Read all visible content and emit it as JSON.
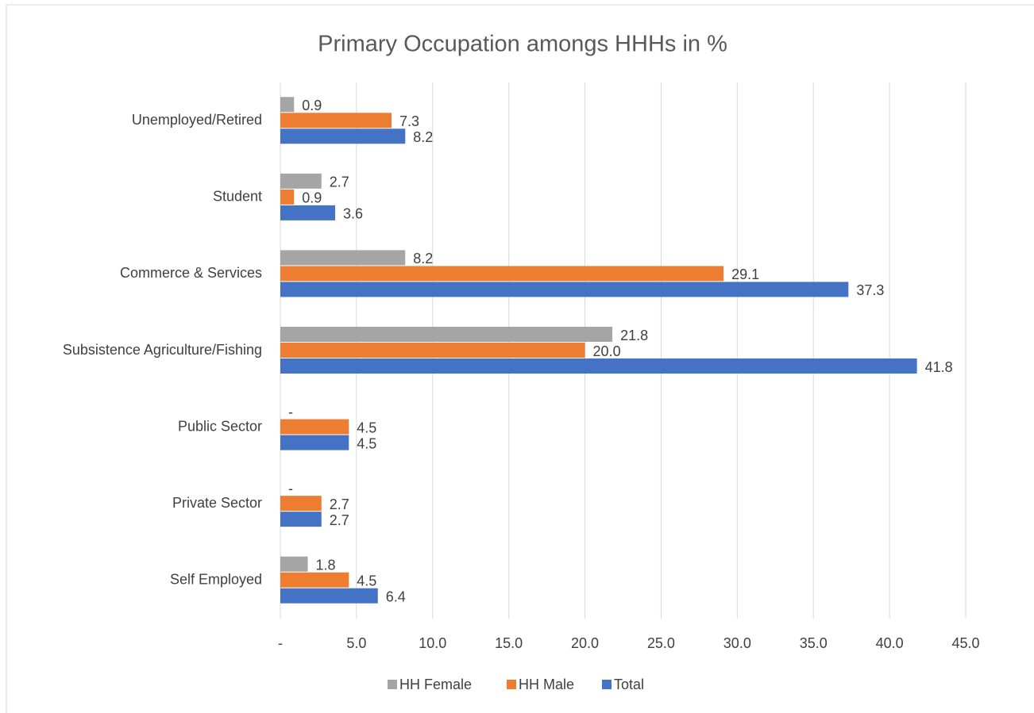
{
  "chart_data": {
    "type": "hbar",
    "title": "Primary Occupation amongs HHHs in %",
    "categories": [
      "Unemployed/Retired",
      "Student",
      "Commerce & Services",
      "Subsistence Agriculture/Fishing",
      "Public Sector",
      "Private Sector",
      "Self Employed"
    ],
    "series": [
      {
        "name": "HH Female",
        "color": "#a5a5a5",
        "values": [
          0.9,
          2.7,
          8.2,
          21.8,
          0,
          0,
          1.8
        ],
        "value_labels": [
          "0.9",
          "2.7",
          "8.2",
          "21.8",
          "-",
          "-",
          "1.8"
        ]
      },
      {
        "name": "HH Male",
        "color": "#ed7d31",
        "values": [
          7.3,
          0.9,
          29.1,
          20.0,
          4.5,
          2.7,
          4.5
        ],
        "value_labels": [
          "7.3",
          "0.9",
          "29.1",
          "20.0",
          "4.5",
          "2.7",
          "4.5"
        ]
      },
      {
        "name": "Total",
        "color": "#4472c4",
        "values": [
          8.2,
          3.6,
          37.3,
          41.8,
          4.5,
          2.7,
          6.4
        ],
        "value_labels": [
          "8.2",
          "3.6",
          "37.3",
          "41.8",
          "4.5",
          "2.7",
          "6.4"
        ]
      }
    ],
    "xlim": [
      0,
      45
    ],
    "xticks": [
      {
        "value": 0,
        "label": "-"
      },
      {
        "value": 5,
        "label": "5.0"
      },
      {
        "value": 10,
        "label": "10.0"
      },
      {
        "value": 15,
        "label": "15.0"
      },
      {
        "value": 20,
        "label": "20.0"
      },
      {
        "value": 25,
        "label": "25.0"
      },
      {
        "value": 30,
        "label": "30.0"
      },
      {
        "value": 35,
        "label": "35.0"
      },
      {
        "value": 40,
        "label": "40.0"
      },
      {
        "value": 45,
        "label": "45.0"
      }
    ],
    "grid": true,
    "legend": "bottom"
  }
}
